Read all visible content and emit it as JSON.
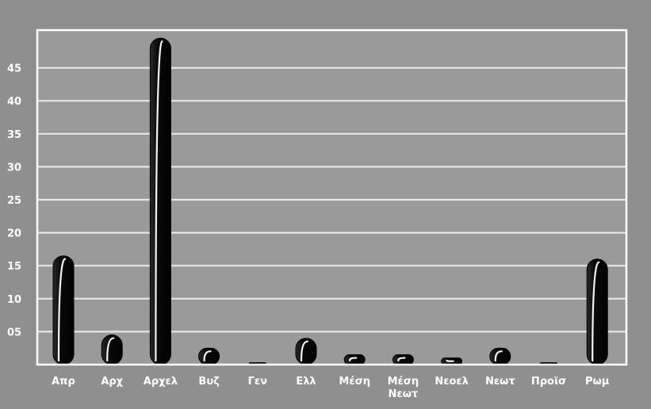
{
  "chart_data": {
    "type": "bar",
    "categories": [
      "Απρ",
      "Αρχ",
      "Αρχελ",
      "Βυζ",
      "Γεν",
      "Ελλ",
      "Μέση",
      "Μέση Νεωτ",
      "Νεοελ",
      "Νεωτ",
      "Προϊσ",
      "Ρωμ"
    ],
    "category_lines": [
      [
        "Απρ"
      ],
      [
        "Αρχ"
      ],
      [
        "Αρχελ"
      ],
      [
        "Βυζ"
      ],
      [
        "Γεν"
      ],
      [
        "Ελλ"
      ],
      [
        "Μέση"
      ],
      [
        "Μέση",
        "Νεωτ"
      ],
      [
        "Νεοελ"
      ],
      [
        "Νεωτ"
      ],
      [
        "Προϊσ"
      ],
      [
        "Ρωμ"
      ]
    ],
    "values": [
      16.5,
      4.5,
      49.5,
      2.5,
      0.2,
      4,
      1.5,
      1.5,
      1,
      2.5,
      0.2,
      16
    ],
    "yticks": [
      "05",
      "10",
      "15",
      "20",
      "25",
      "30",
      "35",
      "40",
      "45"
    ],
    "ytick_values": [
      5,
      10,
      15,
      20,
      25,
      30,
      35,
      40,
      45
    ],
    "ylim": [
      0,
      50
    ],
    "title": "",
    "xlabel": "",
    "ylabel": "",
    "grid": true,
    "colors": {
      "background": "#8f8f8f",
      "plot_background": "#9a9a9a",
      "grid": "#e6e6e6",
      "frame": "#ffffff",
      "bar": "#0c0c0c",
      "text": "#ffffff"
    }
  }
}
